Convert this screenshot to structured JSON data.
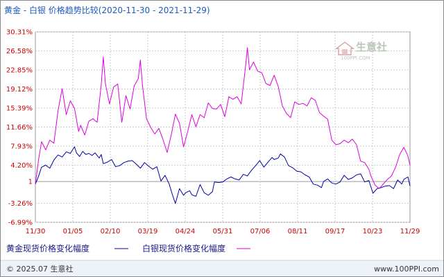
{
  "header": {
    "title": "黄金 - 白银 价格趋势比较(2020-11-30 - 2021-11-29)"
  },
  "watermark": {
    "name": "生意社",
    "url": "100PPI.COM"
  },
  "footer": {
    "copyright": "© 2025.07 生意社",
    "site": "www.100PPI.com"
  },
  "colors": {
    "gold": "#0000aa",
    "silver": "#dd00dd",
    "baseline": "#9a9a9a",
    "grid": "#cccccc",
    "axis_text": "#cc0000",
    "title": "#1c5abf"
  },
  "chart_data": {
    "type": "line",
    "title": "黄金 - 白银 价格趋势比较(2020-11-30 - 2021-11-29)",
    "xlabel": "",
    "ylabel": "",
    "x_ticks": [
      "11/30",
      "01/05",
      "02/10",
      "03/19",
      "04/24",
      "05/31",
      "07/06",
      "08/11",
      "09/17",
      "10/23",
      "11/29"
    ],
    "y_ticks": [
      30.31,
      26.58,
      22.85,
      19.12,
      15.39,
      11.66,
      7.93,
      4.2,
      1,
      -3.26,
      -6.99
    ],
    "y_tick_labels": [
      "30.31%",
      "26.58%",
      "22.85%",
      "19.12%",
      "15.39%",
      "11.66%",
      "7.93%",
      "4.20%",
      "1",
      "-3.26%",
      "-6.99%"
    ],
    "ylim": [
      -6.99,
      30.31
    ],
    "x_range": [
      0,
      364
    ],
    "grid": true,
    "legend_position": "bottom-left",
    "series": [
      {
        "name": "黄金现货价格变化幅度",
        "color": "#0000aa",
        "points": [
          [
            0,
            0.5
          ],
          [
            3,
            2
          ],
          [
            6,
            3.8
          ],
          [
            10,
            4.2
          ],
          [
            14,
            3.6
          ],
          [
            18,
            5.2
          ],
          [
            22,
            6.2
          ],
          [
            26,
            5.8
          ],
          [
            30,
            6.8
          ],
          [
            34,
            6.5
          ],
          [
            38,
            7.8
          ],
          [
            40,
            6.6
          ],
          [
            43,
            5.9
          ],
          [
            46,
            6.9
          ],
          [
            49,
            6.3
          ],
          [
            52,
            6.5
          ],
          [
            55,
            6.1
          ],
          [
            58,
            6.6
          ],
          [
            62,
            5.6
          ],
          [
            64,
            6.3
          ],
          [
            66,
            4.5
          ],
          [
            70,
            4.8
          ],
          [
            74,
            5.3
          ],
          [
            78,
            3.9
          ],
          [
            82,
            4.1
          ],
          [
            86,
            4.7
          ],
          [
            90,
            5
          ],
          [
            94,
            5.1
          ],
          [
            98,
            4.4
          ],
          [
            102,
            3.6
          ],
          [
            106,
            4.7
          ],
          [
            110,
            4
          ],
          [
            114,
            3.4
          ],
          [
            118,
            3.9
          ],
          [
            122,
            1.1
          ],
          [
            126,
            2.2
          ],
          [
            130,
            0.5
          ],
          [
            133,
            -1.5
          ],
          [
            136,
            -3.3
          ],
          [
            140,
            -0.4
          ],
          [
            144,
            -1.7
          ],
          [
            146,
            -1.2
          ],
          [
            150,
            -0.8
          ],
          [
            152,
            -1.6
          ],
          [
            156,
            -1.9
          ],
          [
            160,
            0.4
          ],
          [
            164,
            -1.2
          ],
          [
            168,
            -1.7
          ],
          [
            172,
            -1
          ],
          [
            174,
            0.9
          ],
          [
            178,
            0.8
          ],
          [
            182,
            0.9
          ],
          [
            186,
            1.5
          ],
          [
            190,
            1.9
          ],
          [
            194,
            1.5
          ],
          [
            198,
            1.3
          ],
          [
            202,
            2.4
          ],
          [
            206,
            2.1
          ],
          [
            210,
            3.2
          ],
          [
            214,
            4.1
          ],
          [
            218,
            5.1
          ],
          [
            222,
            3.8
          ],
          [
            226,
            4.8
          ],
          [
            230,
            5.7
          ],
          [
            232,
            5.3
          ],
          [
            236,
            5.6
          ],
          [
            238,
            6.4
          ],
          [
            242,
            5.8
          ],
          [
            246,
            4.1
          ],
          [
            250,
            3.7
          ],
          [
            254,
            3
          ],
          [
            258,
            2.9
          ],
          [
            262,
            2.3
          ],
          [
            266,
            1.9
          ],
          [
            270,
            0.5
          ],
          [
            274,
            0.3
          ],
          [
            278,
            -0.2
          ],
          [
            280,
            1
          ],
          [
            284,
            1.5
          ],
          [
            288,
            0.7
          ],
          [
            292,
            0.5
          ],
          [
            296,
            0.9
          ],
          [
            300,
            2.2
          ],
          [
            304,
            1.4
          ],
          [
            308,
            1.7
          ],
          [
            312,
            2.3
          ],
          [
            316,
            2.5
          ],
          [
            320,
            0.9
          ],
          [
            324,
            1.2
          ],
          [
            328,
            -1.3
          ],
          [
            332,
            -0.4
          ],
          [
            336,
            -0.2
          ],
          [
            340,
            0.1
          ],
          [
            344,
            0.2
          ],
          [
            348,
            -0.4
          ],
          [
            352,
            1.3
          ],
          [
            356,
            0.5
          ],
          [
            358,
            1.4
          ],
          [
            362,
            1.9
          ],
          [
            364,
            0.1
          ]
        ]
      },
      {
        "name": "白银现货价格变化幅度",
        "color": "#dd00dd",
        "points": [
          [
            0,
            0.5
          ],
          [
            3,
            5.2
          ],
          [
            6,
            8.8
          ],
          [
            10,
            7.2
          ],
          [
            14,
            9.1
          ],
          [
            18,
            8.5
          ],
          [
            22,
            14.8
          ],
          [
            26,
            19.2
          ],
          [
            30,
            14.1
          ],
          [
            34,
            16.8
          ],
          [
            38,
            15.3
          ],
          [
            42,
            10.8
          ],
          [
            44,
            12
          ],
          [
            48,
            10.1
          ],
          [
            52,
            12.8
          ],
          [
            56,
            13.3
          ],
          [
            60,
            12.6
          ],
          [
            64,
            19.9
          ],
          [
            66,
            25.4
          ],
          [
            68,
            20.2
          ],
          [
            72,
            16.2
          ],
          [
            76,
            19.5
          ],
          [
            80,
            20.1
          ],
          [
            84,
            12.6
          ],
          [
            88,
            17.8
          ],
          [
            92,
            15.2
          ],
          [
            96,
            19.7
          ],
          [
            100,
            21.2
          ],
          [
            102,
            24.8
          ],
          [
            104,
            19.9
          ],
          [
            108,
            13.3
          ],
          [
            112,
            11.6
          ],
          [
            116,
            10.3
          ],
          [
            120,
            11.4
          ],
          [
            124,
            9.2
          ],
          [
            128,
            6.7
          ],
          [
            132,
            10.1
          ],
          [
            136,
            14.2
          ],
          [
            140,
            12.4
          ],
          [
            144,
            7.8
          ],
          [
            148,
            10.8
          ],
          [
            152,
            14.1
          ],
          [
            156,
            11.7
          ],
          [
            160,
            14.1
          ],
          [
            164,
            13.5
          ],
          [
            168,
            16.4
          ],
          [
            172,
            15.3
          ],
          [
            176,
            15.2
          ],
          [
            180,
            16.1
          ],
          [
            184,
            13.7
          ],
          [
            188,
            17.6
          ],
          [
            192,
            17.1
          ],
          [
            196,
            17.6
          ],
          [
            200,
            16.2
          ],
          [
            204,
            23.1
          ],
          [
            206,
            27.2
          ],
          [
            208,
            22.9
          ],
          [
            212,
            24.4
          ],
          [
            216,
            22.6
          ],
          [
            220,
            22.3
          ],
          [
            224,
            20.2
          ],
          [
            228,
            19.8
          ],
          [
            232,
            21.8
          ],
          [
            236,
            19.6
          ],
          [
            240,
            15.8
          ],
          [
            244,
            14.3
          ],
          [
            248,
            13.5
          ],
          [
            252,
            16.6
          ],
          [
            256,
            16.1
          ],
          [
            260,
            16.3
          ],
          [
            264,
            15.8
          ],
          [
            268,
            17.4
          ],
          [
            272,
            16.9
          ],
          [
            276,
            14.5
          ],
          [
            280,
            13.8
          ],
          [
            284,
            13.2
          ],
          [
            288,
            9.1
          ],
          [
            292,
            8.2
          ],
          [
            296,
            8.4
          ],
          [
            300,
            9.1
          ],
          [
            304,
            8.6
          ],
          [
            308,
            9.3
          ],
          [
            312,
            8.2
          ],
          [
            316,
            5
          ],
          [
            320,
            4.7
          ],
          [
            324,
            3.4
          ],
          [
            326,
            2.1
          ],
          [
            330,
            0.3
          ],
          [
            334,
            -0.4
          ],
          [
            338,
            0.5
          ],
          [
            342,
            1.4
          ],
          [
            346,
            2.1
          ],
          [
            350,
            3.8
          ],
          [
            354,
            6.3
          ],
          [
            358,
            7.7
          ],
          [
            362,
            6
          ],
          [
            364,
            4.1
          ]
        ]
      }
    ]
  }
}
